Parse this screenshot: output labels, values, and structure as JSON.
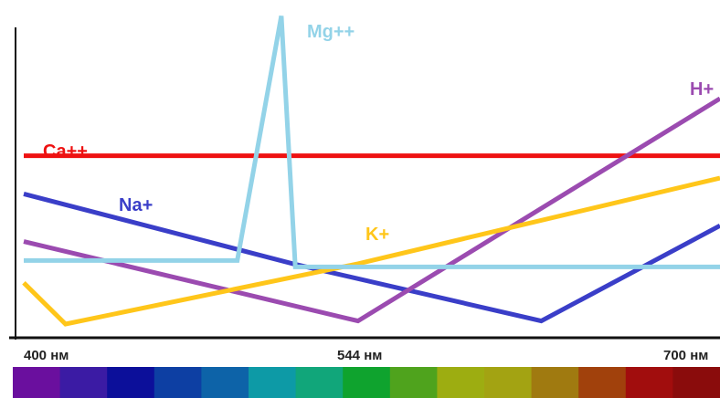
{
  "chart_data": {
    "type": "line",
    "x_unit": "nm",
    "x_tick_labels": [
      "400 нм",
      "544 нм",
      "700 нм"
    ],
    "x_ticks": [
      400,
      544,
      700
    ],
    "xlim": [
      400,
      700
    ],
    "y_values_relative": true,
    "ylim": [
      0,
      100
    ],
    "grid": false,
    "legend": "none",
    "series": [
      {
        "name": "Ca++",
        "color": "#ee1111",
        "points": [
          [
            400,
            55
          ],
          [
            700,
            55
          ]
        ]
      },
      {
        "name": "Na+",
        "color": "#3a3ec8",
        "points": [
          [
            400,
            43
          ],
          [
            516,
            21
          ],
          [
            623,
            3
          ],
          [
            700,
            33
          ]
        ]
      },
      {
        "name": "Mg++",
        "color": "#93d3e8",
        "points": [
          [
            400,
            22
          ],
          [
            492,
            22
          ],
          [
            511,
            99
          ],
          [
            517,
            20
          ],
          [
            700,
            20
          ]
        ]
      },
      {
        "name": "H+",
        "color": "#9b4bb0",
        "points": [
          [
            400,
            28
          ],
          [
            544,
            3
          ],
          [
            700,
            73
          ]
        ]
      },
      {
        "name": "K+",
        "color": "#ffc61a",
        "points": [
          [
            400,
            15
          ],
          [
            418,
            2
          ],
          [
            544,
            21
          ],
          [
            700,
            48
          ]
        ]
      }
    ],
    "spectrum_colors": [
      "#6a0f9e",
      "#3b1ba4",
      "#0c0f9a",
      "#0d3fa3",
      "#0d63a8",
      "#0d9aa6",
      "#11a67a",
      "#0fa32e",
      "#4fa31d",
      "#9dad11",
      "#a3a312",
      "#a07a10",
      "#a1410c",
      "#a10d0d",
      "#8a0c0c"
    ]
  }
}
